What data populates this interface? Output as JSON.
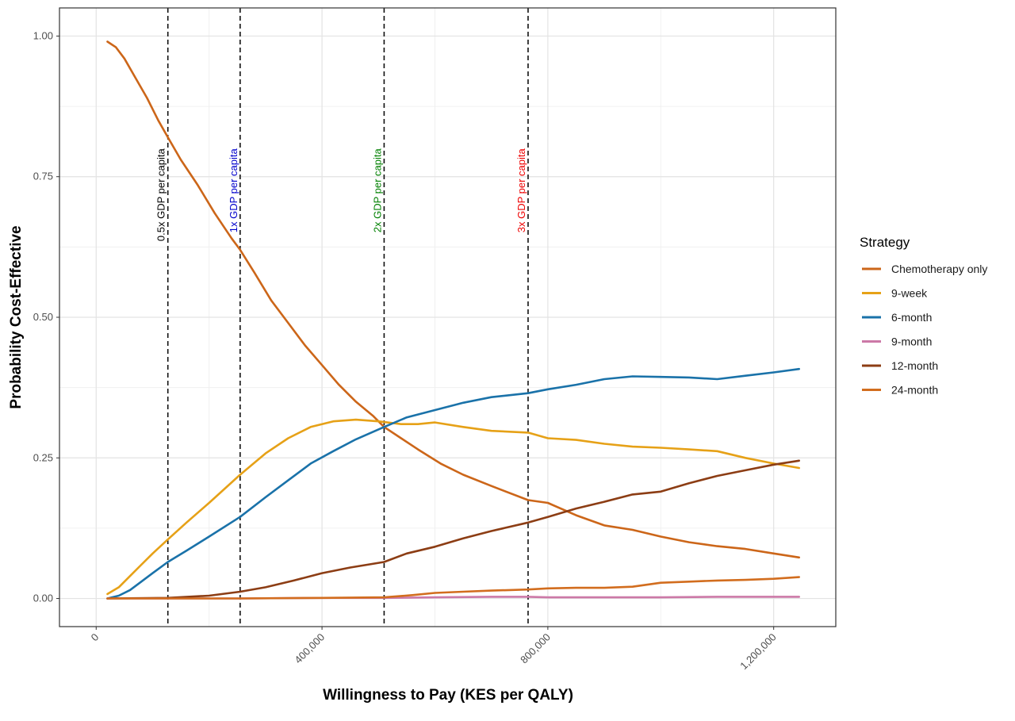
{
  "chart_data": {
    "type": "line",
    "xlabel": "Willingness to Pay (KES per QALY)",
    "ylabel": "Probability Cost-Effective",
    "xlim": [
      -65000,
      1310000
    ],
    "ylim": [
      -0.05,
      1.05
    ],
    "x_ticks": [
      0,
      400000,
      800000,
      1200000
    ],
    "x_tick_labels": [
      "0",
      "400,000",
      "800,000",
      "1,200,000"
    ],
    "y_ticks": [
      0,
      0.25,
      0.5,
      0.75,
      1.0
    ],
    "y_tick_labels": [
      "0.00",
      "0.25",
      "0.50",
      "0.75",
      "1.00"
    ],
    "grid": true,
    "legend": {
      "title": "Strategy",
      "position": "right"
    },
    "reference_lines": [
      {
        "x": 127000,
        "label": "0.5x GDP per capita",
        "color": "#000000"
      },
      {
        "x": 255000,
        "label": "1x GDP per capita",
        "color": "#0000cc"
      },
      {
        "x": 510000,
        "label": "2x GDP per capita",
        "color": "#008000"
      },
      {
        "x": 765000,
        "label": "3x GDP per capita",
        "color": "#ee0000"
      }
    ],
    "series": [
      {
        "name": "Chemotherapy only",
        "color": "#cc6619",
        "x": [
          20000,
          35000,
          50000,
          70000,
          90000,
          110000,
          127000,
          150000,
          180000,
          210000,
          240000,
          255000,
          280000,
          310000,
          340000,
          370000,
          400000,
          430000,
          460000,
          490000,
          510000,
          540000,
          570000,
          610000,
          650000,
          700000,
          765000,
          800000,
          850000,
          900000,
          950000,
          1000000,
          1050000,
          1100000,
          1150000,
          1200000,
          1245000
        ],
        "values": [
          0.99,
          0.98,
          0.96,
          0.925,
          0.89,
          0.85,
          0.82,
          0.78,
          0.735,
          0.685,
          0.64,
          0.62,
          0.58,
          0.53,
          0.49,
          0.45,
          0.415,
          0.38,
          0.35,
          0.325,
          0.305,
          0.285,
          0.265,
          0.24,
          0.22,
          0.2,
          0.175,
          0.17,
          0.148,
          0.13,
          0.122,
          0.11,
          0.1,
          0.093,
          0.088,
          0.08,
          0.073
        ]
      },
      {
        "name": "9-week",
        "color": "#e6a117",
        "x": [
          20000,
          40000,
          60000,
          80000,
          100000,
          127000,
          160000,
          200000,
          255000,
          300000,
          340000,
          380000,
          420000,
          460000,
          500000,
          540000,
          570000,
          600000,
          650000,
          700000,
          765000,
          800000,
          850000,
          900000,
          950000,
          1000000,
          1050000,
          1100000,
          1150000,
          1200000,
          1245000
        ],
        "values": [
          0.008,
          0.02,
          0.04,
          0.06,
          0.08,
          0.105,
          0.135,
          0.17,
          0.22,
          0.258,
          0.285,
          0.305,
          0.315,
          0.318,
          0.315,
          0.31,
          0.31,
          0.313,
          0.305,
          0.298,
          0.295,
          0.285,
          0.282,
          0.275,
          0.27,
          0.268,
          0.265,
          0.262,
          0.25,
          0.24,
          0.232
        ]
      },
      {
        "name": "6-month",
        "color": "#1a72a9",
        "x": [
          20000,
          40000,
          60000,
          80000,
          100000,
          127000,
          160000,
          200000,
          255000,
          300000,
          340000,
          380000,
          420000,
          460000,
          510000,
          550000,
          600000,
          650000,
          700000,
          765000,
          800000,
          850000,
          900000,
          950000,
          1000000,
          1050000,
          1100000,
          1150000,
          1200000,
          1245000
        ],
        "values": [
          0.0,
          0.005,
          0.015,
          0.03,
          0.045,
          0.065,
          0.085,
          0.11,
          0.145,
          0.18,
          0.21,
          0.24,
          0.262,
          0.283,
          0.305,
          0.322,
          0.335,
          0.348,
          0.358,
          0.365,
          0.372,
          0.38,
          0.39,
          0.395,
          0.394,
          0.393,
          0.39,
          0.396,
          0.402,
          0.408
        ]
      },
      {
        "name": "9-month",
        "color": "#cc79a7",
        "x": [
          20000,
          127000,
          255000,
          400000,
          510000,
          600000,
          700000,
          765000,
          800000,
          900000,
          1000000,
          1100000,
          1200000,
          1245000
        ],
        "values": [
          0.0,
          0.0,
          0.0,
          0.001,
          0.001,
          0.002,
          0.003,
          0.003,
          0.002,
          0.002,
          0.002,
          0.003,
          0.003,
          0.003
        ]
      },
      {
        "name": "12-month",
        "color": "#8c3d14",
        "x": [
          20000,
          127000,
          200000,
          255000,
          300000,
          350000,
          400000,
          450000,
          510000,
          550000,
          600000,
          650000,
          700000,
          765000,
          800000,
          850000,
          900000,
          950000,
          1000000,
          1050000,
          1100000,
          1150000,
          1200000,
          1245000
        ],
        "values": [
          0.0,
          0.001,
          0.005,
          0.012,
          0.02,
          0.032,
          0.045,
          0.055,
          0.065,
          0.08,
          0.092,
          0.107,
          0.12,
          0.135,
          0.145,
          0.16,
          0.172,
          0.185,
          0.19,
          0.205,
          0.218,
          0.228,
          0.238,
          0.245
        ]
      },
      {
        "name": "24-month",
        "color": "#d26d1e",
        "x": [
          20000,
          127000,
          255000,
          400000,
          510000,
          560000,
          600000,
          650000,
          700000,
          765000,
          800000,
          850000,
          900000,
          950000,
          1000000,
          1050000,
          1100000,
          1150000,
          1200000,
          1245000
        ],
        "values": [
          0.0,
          0.0,
          0.0,
          0.001,
          0.002,
          0.006,
          0.01,
          0.012,
          0.014,
          0.016,
          0.018,
          0.019,
          0.019,
          0.021,
          0.028,
          0.03,
          0.032,
          0.033,
          0.035,
          0.038
        ]
      }
    ]
  }
}
